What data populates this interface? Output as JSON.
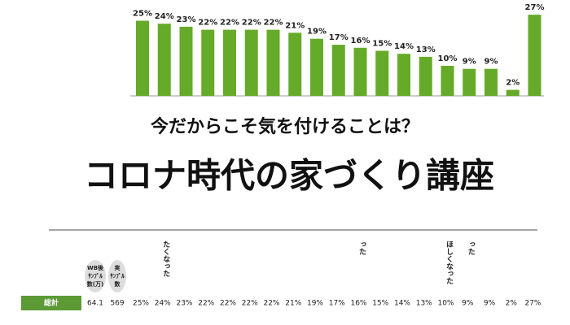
{
  "chart_data": {
    "type": "bar",
    "categories": [
      null,
      null,
      null,
      null,
      null,
      null,
      null,
      null,
      null,
      null,
      null,
      null,
      null,
      null,
      null,
      null,
      null,
      null,
      null
    ],
    "values": [
      25,
      24,
      23,
      22,
      22,
      22,
      22,
      21,
      19,
      17,
      16,
      15,
      14,
      13,
      10,
      9,
      9,
      2,
      27
    ],
    "value_labels": [
      "25%",
      "24%",
      "23%",
      "22%",
      "22%",
      "22%",
      "22%",
      "21%",
      "19%",
      "17%",
      "16%",
      "15%",
      "14%",
      "13%",
      "10%",
      "9%",
      "9%",
      "2%",
      "27%"
    ],
    "color": "#66aa2a"
  },
  "banner": {
    "subtitle": "今だからこそ気を付けることは？",
    "title": "コロナ時代の家づくり講座"
  },
  "table": {
    "headers": [
      [
        "WB後",
        "ｻﾝﾌﾟﾙ",
        "数(万)"
      ],
      [
        "実",
        "ｻﾝﾌﾟﾙ",
        "数"
      ]
    ],
    "column_fragments": [
      {
        "column": 1,
        "text": "たくなった"
      },
      {
        "column": 10,
        "text": "った"
      },
      {
        "column": 14,
        "text": "ほしくなった"
      },
      {
        "column": 15,
        "text": "った"
      }
    ],
    "row": {
      "label": "総計",
      "cells": [
        "64.1",
        "569"
      ]
    }
  }
}
